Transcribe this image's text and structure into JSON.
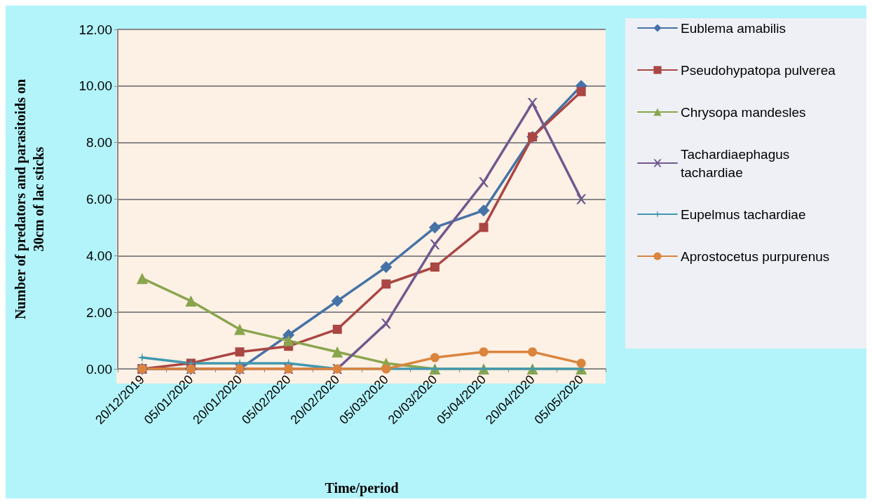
{
  "chart_data": {
    "type": "line",
    "xlabel": "Time/period",
    "ylabel": "Number of predators and parasitoids on\n30cm of lac sticks",
    "categories": [
      "20/12/2019",
      "05/01/2020",
      "20/01/2020",
      "05/02/2020",
      "20/02/2020",
      "05/03/2020",
      "20/03/2020",
      "05/04/2020",
      "20/04/2020",
      "05/05/2020"
    ],
    "series": [
      {
        "name": "Eublema amabilis",
        "color": "#4572a7",
        "marker": "diamond",
        "values": [
          0,
          0,
          0,
          1.2,
          2.4,
          3.6,
          5.0,
          5.6,
          8.2,
          10.0
        ]
      },
      {
        "name": "Pseudohypatopa pulverea",
        "color": "#aa4643",
        "marker": "square",
        "values": [
          0,
          0.2,
          0.6,
          0.8,
          1.4,
          3.0,
          3.6,
          5.0,
          8.2,
          9.8
        ]
      },
      {
        "name": "Chrysopa mandesles",
        "color": "#89a54e",
        "marker": "triangle",
        "values": [
          3.2,
          2.4,
          1.4,
          1.0,
          0.6,
          0.2,
          0,
          0,
          0,
          0
        ]
      },
      {
        "name": "Tachardiaephagus tachardiae",
        "color": "#71588f",
        "marker": "cross",
        "values": [
          0,
          0,
          0,
          0,
          0,
          1.6,
          4.4,
          6.6,
          9.4,
          6.0
        ]
      },
      {
        "name": "Eupelmus tachardiae",
        "color": "#4198af",
        "marker": "star",
        "values": [
          0.4,
          0.2,
          0.2,
          0.2,
          0,
          0,
          0,
          0,
          0,
          0
        ]
      },
      {
        "name": "Aprostocetus purpurenus",
        "color": "#db843d",
        "marker": "circle",
        "values": [
          0,
          0,
          0,
          0,
          0,
          0,
          0.4,
          0.6,
          0.6,
          0.2
        ]
      }
    ],
    "ylim": [
      0,
      12
    ],
    "yticks": [
      {
        "value": 0,
        "label": "0.00"
      },
      {
        "value": 2,
        "label": "2.00"
      },
      {
        "value": 4,
        "label": "4.00"
      },
      {
        "value": 6,
        "label": "6.00"
      },
      {
        "value": 8,
        "label": "8.00"
      },
      {
        "value": 10,
        "label": "10.00"
      },
      {
        "value": 12,
        "label": "12.00"
      }
    ],
    "grid": "y",
    "legend": "right"
  }
}
